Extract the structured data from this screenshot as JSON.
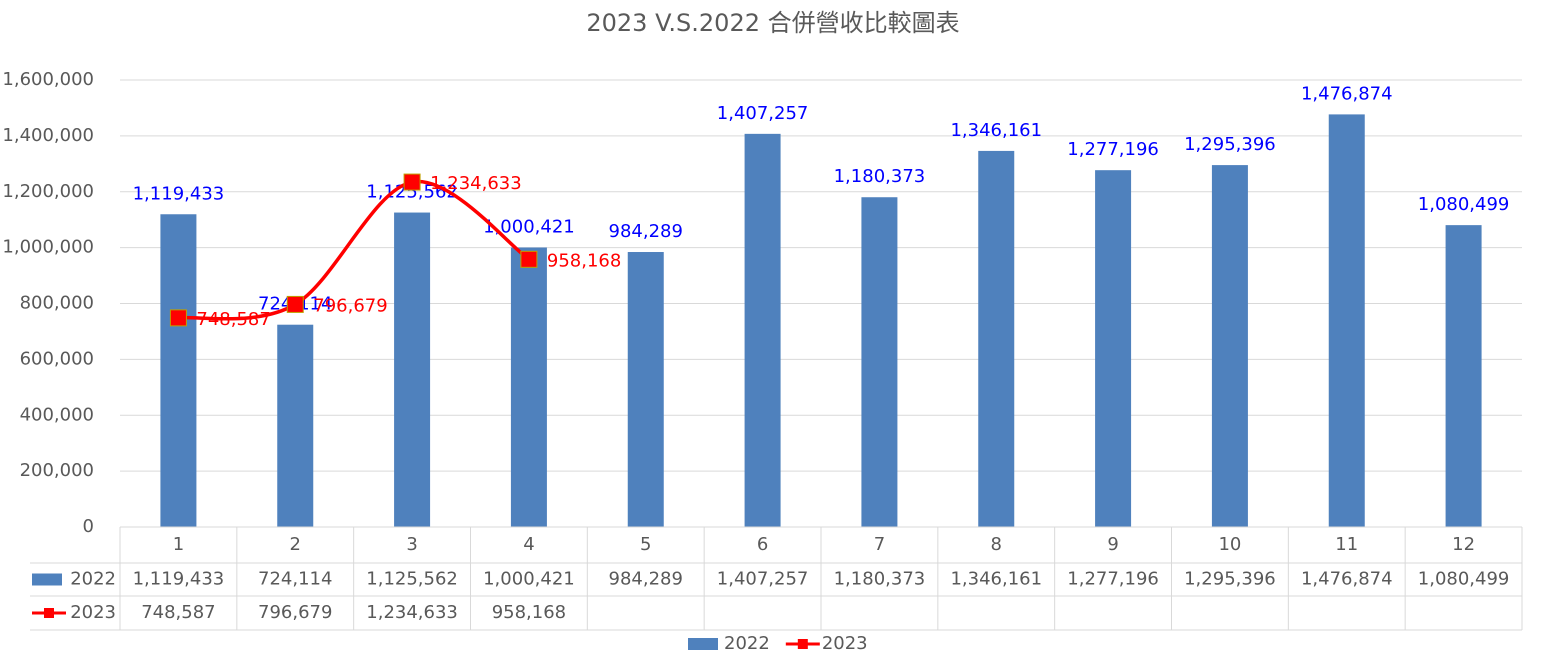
{
  "chart_data": {
    "type": "bar_line_table",
    "title": "2023 V.S.2022 合併營收比較圖表",
    "categories": [
      "1",
      "2",
      "3",
      "4",
      "5",
      "6",
      "7",
      "8",
      "9",
      "10",
      "11",
      "12"
    ],
    "series": [
      {
        "name": "2022",
        "type": "bar",
        "color": "#4f81bd",
        "label_color": "#0000ff",
        "values": [
          1119433,
          724114,
          1125562,
          1000421,
          984289,
          1407257,
          1180373,
          1346161,
          1277196,
          1295396,
          1476874,
          1080499
        ],
        "value_labels": [
          "1,119,433",
          "724,114",
          "1,125,562",
          "1,000,421",
          "984,289",
          "1,407,257",
          "1,180,373",
          "1,346,161",
          "1,277,196",
          "1,295,396",
          "1,476,874",
          "1,080,499"
        ]
      },
      {
        "name": "2023",
        "type": "line",
        "color": "#ff0000",
        "label_color": "#ff0000",
        "values": [
          748587,
          796679,
          1234633,
          958168,
          null,
          null,
          null,
          null,
          null,
          null,
          null,
          null
        ],
        "value_labels": [
          "748,587",
          "796,679",
          "1,234,633",
          "958,168",
          null,
          null,
          null,
          null,
          null,
          null,
          null,
          null
        ]
      }
    ],
    "ylim": [
      0,
      1600000
    ],
    "yticks": [
      0,
      {
        "value": 200000,
        "label": "200,000"
      },
      {
        "value": 400000,
        "label": "400,000"
      },
      {
        "value": 600000,
        "label": "600,000"
      },
      {
        "value": 800000,
        "label": "800,000"
      },
      {
        "value": 1000000,
        "label": "1,000,000"
      },
      {
        "value": 1200000,
        "label": "1,200,000"
      },
      {
        "value": 1400000,
        "label": "1,400,000"
      },
      {
        "value": 1600000,
        "label": "1,600,000"
      }
    ],
    "grid": true,
    "legend": "bottom",
    "data_table": true
  }
}
